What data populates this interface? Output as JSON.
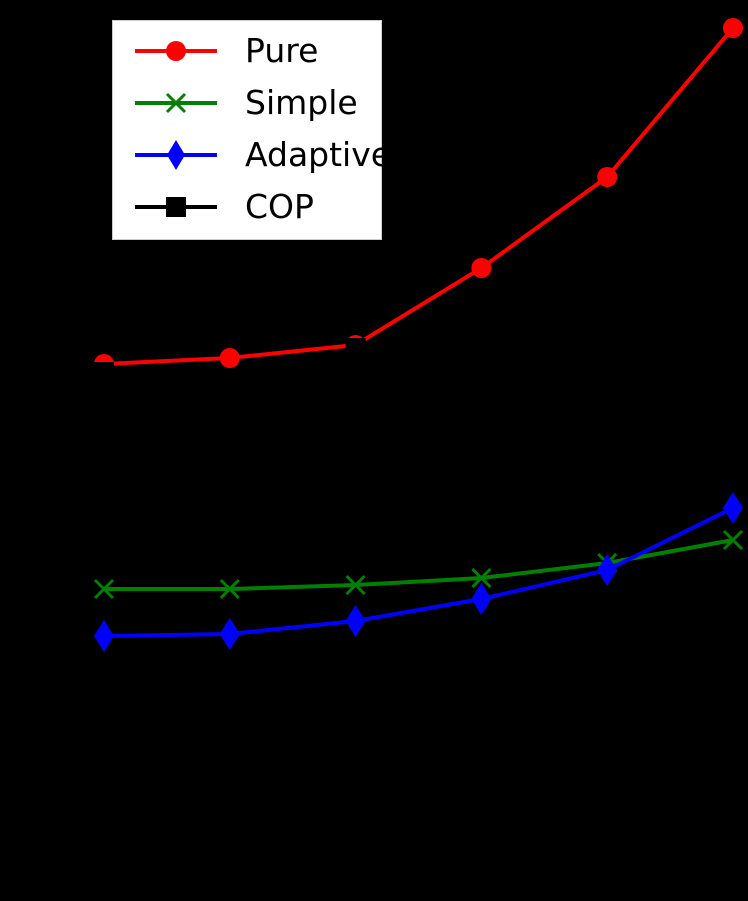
{
  "chart_data": {
    "type": "line",
    "title": "",
    "xlabel": "",
    "ylabel": "",
    "x": [
      1,
      2,
      3,
      4,
      5,
      6
    ],
    "ylim": [
      0,
      9
    ],
    "grid": false,
    "legend_position": "upper left",
    "series": [
      {
        "name": "Pure",
        "color": "#ff0000",
        "marker": "circle",
        "values": [
          5.37,
          5.43,
          5.56,
          6.33,
          7.24,
          8.73
        ]
      },
      {
        "name": "Simple",
        "color": "#008000",
        "marker": "x",
        "values": [
          3.12,
          3.12,
          3.16,
          3.23,
          3.38,
          3.61
        ]
      },
      {
        "name": "Adaptive",
        "color": "#0000ff",
        "marker": "diamond",
        "values": [
          2.65,
          2.67,
          2.8,
          3.02,
          3.31,
          3.93
        ]
      },
      {
        "name": "COP",
        "color": "#000000",
        "marker": "square",
        "values": [
          5.29,
          null,
          5.53,
          null,
          null,
          null
        ]
      }
    ],
    "notes": "Axes, ticks and labels are rendered black on a black background and are not visible; values are relative estimates from pixel positions."
  },
  "legend": {
    "items": [
      {
        "label": "Pure",
        "color": "#ff0000"
      },
      {
        "label": "Simple",
        "color": "#008000"
      },
      {
        "label": "Adaptive",
        "color": "#0000ff"
      },
      {
        "label": "COP",
        "color": "#000000"
      }
    ]
  }
}
